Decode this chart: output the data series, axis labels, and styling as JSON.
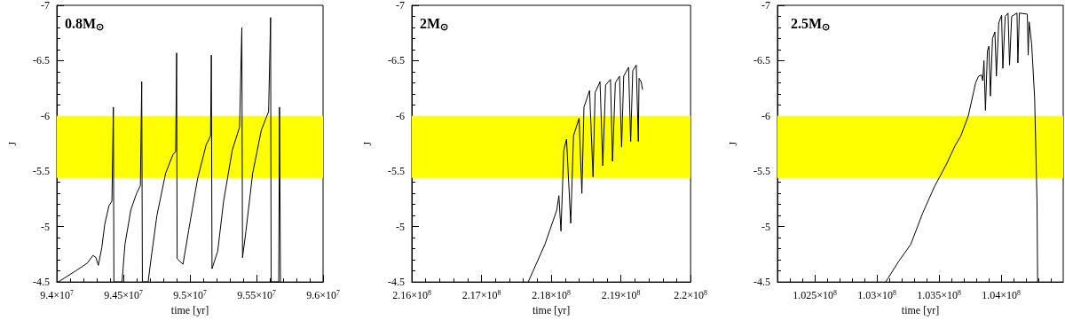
{
  "chart_data": [
    {
      "type": "line",
      "title": "0.8M$_{⊙}$",
      "xlabel": "time [yr]",
      "ylabel": "J",
      "color": "#000000",
      "x": [
        94010000.0,
        94142000.0,
        94229000.0,
        94272000.0,
        94294000.0,
        94312000.0,
        94338000.0,
        94360000.0,
        94392000.0,
        94414000.0,
        94425000.0,
        94429000.0,
        94490000.0,
        94512000.0,
        94556000.0,
        94599000.0,
        94628000.0,
        94638000.0,
        94643000.0,
        94686000.0,
        94708000.0,
        94752000.0,
        94817000.0,
        94872000.0,
        94893000.0,
        94900000.0,
        94904000.0,
        94948000.0,
        94991000.0,
        95057000.0,
        95122000.0,
        95155000.0,
        95161000.0,
        95166000.0,
        95209000.0,
        95253000.0,
        95318000.0,
        95373000.0,
        95390000.0,
        95395000.0,
        95421000.0,
        95471000.0,
        95536000.0,
        95591000.0,
        95606000.0,
        95610000.0,
        95667000.0,
        95673000.0,
        95680000.0
      ],
      "values": [
        -4.5,
        -4.6,
        -4.67,
        -4.74,
        -4.72,
        -4.65,
        -4.81,
        -5.02,
        -5.19,
        -5.23,
        -6.08,
        -4.5,
        -4.5,
        -4.84,
        -5.15,
        -5.3,
        -5.37,
        -6.31,
        -4.5,
        -4.5,
        -4.71,
        -5.1,
        -5.48,
        -5.65,
        -5.68,
        -6.57,
        -4.71,
        -4.66,
        -4.97,
        -5.43,
        -5.74,
        -5.82,
        -6.55,
        -4.62,
        -4.78,
        -5.23,
        -5.69,
        -5.9,
        -6.8,
        -4.72,
        -4.96,
        -5.48,
        -5.87,
        -6.04,
        -6.89,
        -4.5,
        -4.5,
        -6.08,
        -4.5
      ],
      "xlim": [
        94000000.0,
        96000000.0
      ],
      "xticks": [
        {
          "value": 94000000.0,
          "label": "9.4×10$^{7}$"
        },
        {
          "value": 94500000.0,
          "label": "9.45×10$^{7}$"
        },
        {
          "value": 95000000.0,
          "label": "9.5×10$^{7}$"
        },
        {
          "value": 95500000.0,
          "label": "9.55×10$^{7}$"
        },
        {
          "value": 96000000.0,
          "label": "9.6×10$^{7}$"
        }
      ],
      "ylim": [
        -4.5,
        -7
      ],
      "yticks": [
        -4.5,
        -5,
        -5.5,
        -6,
        -6.5,
        -7
      ],
      "bands": [
        {
          "axis": "y",
          "from": -5.44,
          "to": -6,
          "color": "#ffff00"
        }
      ]
    },
    {
      "type": "line",
      "title": "2M$_{⊙}$",
      "xlabel": "time [yr]",
      "ylabel": "J",
      "color": "#000000",
      "x": [
        217670000.0,
        217910000.0,
        218080000.0,
        218110000.0,
        218140000.0,
        218180000.0,
        218220000.0,
        218280000.0,
        218320000.0,
        218400000.0,
        218440000.0,
        218470000.0,
        218550000.0,
        218600000.0,
        218630000.0,
        218700000.0,
        218740000.0,
        218780000.0,
        218850000.0,
        218880000.0,
        218920000.0,
        218980000.0,
        219010000.0,
        219040000.0,
        219110000.0,
        219140000.0,
        219170000.0,
        219220000.0,
        219250000.0,
        219260000.0,
        219290000.0,
        219310000.0
      ],
      "values": [
        -4.5,
        -4.84,
        -5.15,
        -5.28,
        -4.96,
        -5.69,
        -5.79,
        -5.03,
        -5.82,
        -5.98,
        -5.3,
        -6.08,
        -6.23,
        -5.45,
        -6.21,
        -6.31,
        -5.55,
        -6.28,
        -6.33,
        -5.59,
        -6.3,
        -6.36,
        -5.72,
        -6.36,
        -6.44,
        -5.77,
        -6.41,
        -6.46,
        -5.77,
        -6.34,
        -6.31,
        -6.24
      ],
      "xlim": [
        216000000.0,
        220000000.0
      ],
      "xticks": [
        {
          "value": 216000000.0,
          "label": "2.16×10$^{8}$"
        },
        {
          "value": 217000000.0,
          "label": "2.17×10$^{8}$"
        },
        {
          "value": 218000000.0,
          "label": "2.18×10$^{8}$"
        },
        {
          "value": 219000000.0,
          "label": "2.19×10$^{8}$"
        },
        {
          "value": 220000000.0,
          "label": "2.2×10$^{8}$"
        }
      ],
      "ylim": [
        -4.5,
        -7
      ],
      "yticks": [
        -4.5,
        -5,
        -5.5,
        -6,
        -6.5,
        -7
      ],
      "bands": [
        {
          "axis": "y",
          "from": -5.44,
          "to": -6,
          "color": "#ffff00"
        }
      ]
    },
    {
      "type": "line",
      "title": "2.5M$_{⊙}$",
      "xlabel": "time [yr]",
      "ylabel": "J",
      "color": "#000000",
      "x": [
        103071000.0,
        103178000.0,
        103273000.0,
        103368000.0,
        103463000.0,
        103558000.0,
        103629000.0,
        103676000.0,
        103736000.0,
        103795000.0,
        103819000.0,
        103843000.0,
        103852000.0,
        103862000.0,
        103874000.0,
        103890000.0,
        103902000.0,
        103914000.0,
        103931000.0,
        103950000.0,
        103962000.0,
        103981000.0,
        104004000.0,
        104014000.0,
        104033000.0,
        104056000.0,
        104068000.0,
        104085000.0,
        104128000.0,
        104135000.0,
        104147000.0,
        104211000.0,
        104218000.0,
        104226000.0,
        104246000.0,
        104270000.0,
        104289000.0,
        104294000.0
      ],
      "values": [
        -4.5,
        -4.69,
        -4.84,
        -5.12,
        -5.36,
        -5.56,
        -5.73,
        -5.82,
        -6.0,
        -6.3,
        -6.36,
        -6.37,
        -6.32,
        -6.5,
        -6.05,
        -6.59,
        -6.63,
        -6.18,
        -6.7,
        -6.76,
        -6.36,
        -6.84,
        -6.91,
        -6.43,
        -6.9,
        -6.93,
        -6.46,
        -6.9,
        -6.93,
        -6.48,
        -6.93,
        -6.92,
        -6.55,
        -6.85,
        -6.65,
        -6.16,
        -5.23,
        -4.5
      ],
      "xlim": [
        102200000.0,
        104500000.0
      ],
      "xticks": [
        {
          "value": 102500000.0,
          "label": "1.025×10$^{8}$"
        },
        {
          "value": 103000000.0,
          "label": "1.03×10$^{8}$"
        },
        {
          "value": 103500000.0,
          "label": "1.035×10$^{8}$"
        },
        {
          "value": 104000000.0,
          "label": "1.04×10$^{8}$"
        }
      ],
      "ylim": [
        -4.5,
        -7
      ],
      "yticks": [
        -4.5,
        -5,
        -5.5,
        -6,
        -6.5,
        -7
      ],
      "bands": [
        {
          "axis": "y",
          "from": -5.44,
          "to": -6,
          "color": "#ffff00"
        }
      ]
    }
  ]
}
